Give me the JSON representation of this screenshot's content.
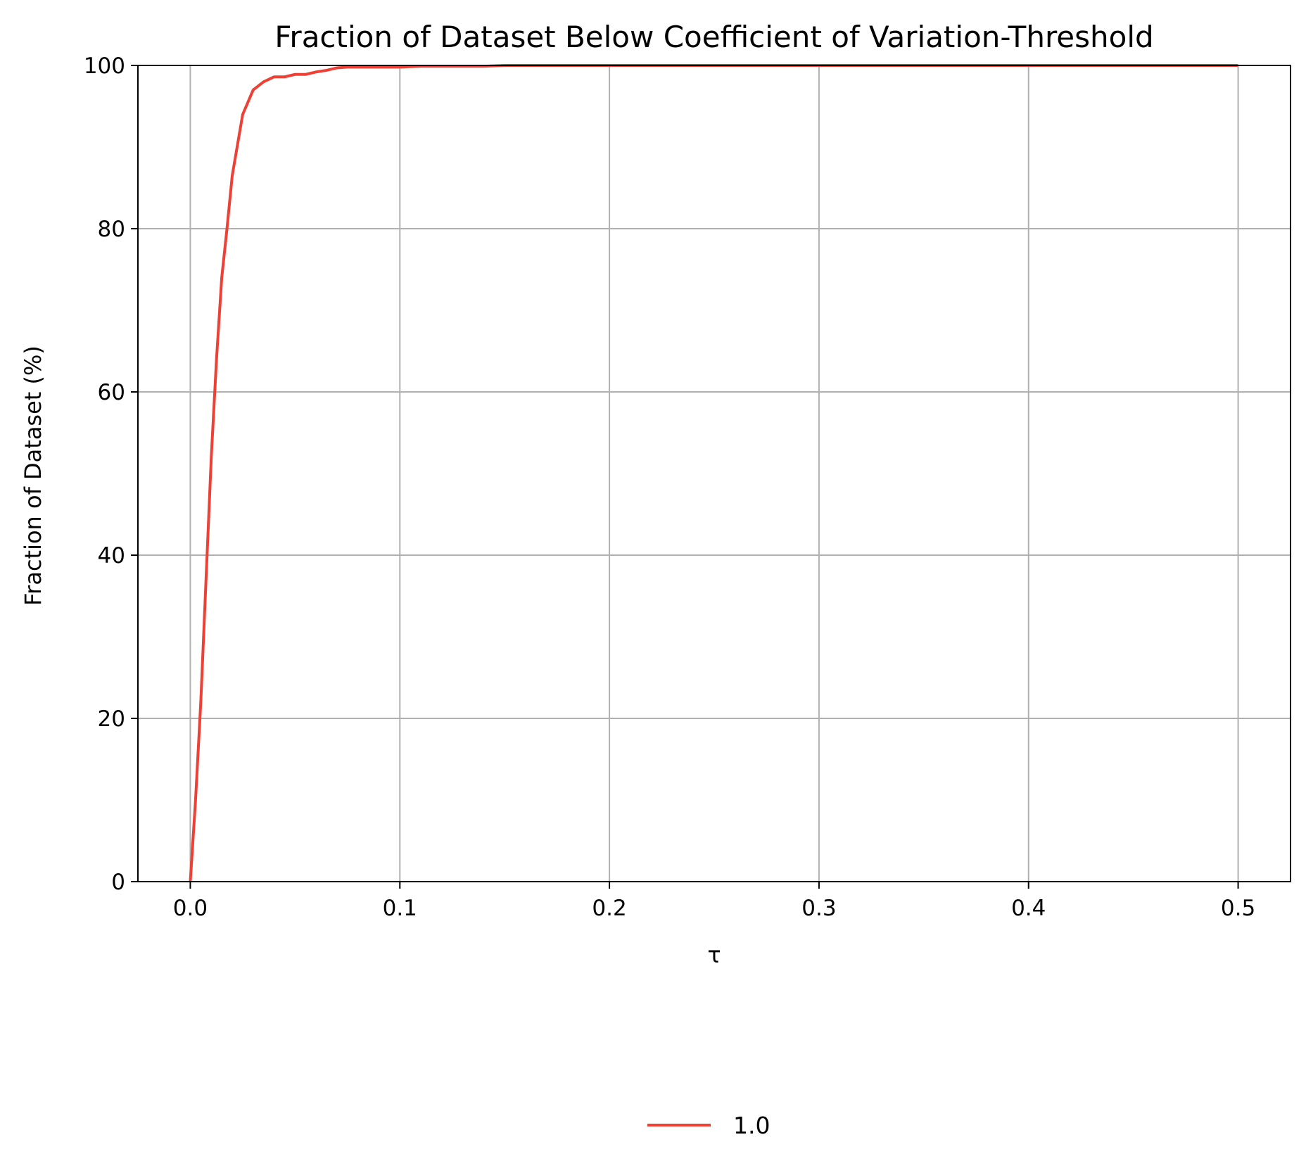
{
  "chart_data": {
    "type": "line",
    "title": "Fraction of Dataset Below Coefficient of Variation-Threshold",
    "xlabel": "τ",
    "ylabel": "Fraction of Dataset (%)",
    "xlim": [
      -0.025,
      0.525
    ],
    "ylim": [
      0,
      100
    ],
    "xticks": [
      0.0,
      0.1,
      0.2,
      0.3,
      0.4,
      0.5
    ],
    "xtick_labels": [
      "0.0",
      "0.1",
      "0.2",
      "0.3",
      "0.4",
      "0.5"
    ],
    "yticks": [
      0,
      20,
      40,
      60,
      80,
      100
    ],
    "ytick_labels": [
      "0",
      "20",
      "40",
      "60",
      "80",
      "100"
    ],
    "grid": true,
    "legend_position": "bottom-center",
    "series": [
      {
        "name": "1.0",
        "color": "#ee4035",
        "x": [
          0.0,
          0.0025,
          0.005,
          0.0075,
          0.01,
          0.0125,
          0.015,
          0.0175,
          0.02,
          0.025,
          0.03,
          0.035,
          0.04,
          0.045,
          0.05,
          0.055,
          0.06,
          0.065,
          0.07,
          0.075,
          0.08,
          0.09,
          0.1,
          0.11,
          0.12,
          0.13,
          0.14,
          0.15,
          0.2,
          0.3,
          0.4,
          0.5
        ],
        "y": [
          0,
          10,
          22,
          37,
          52,
          64,
          74,
          80,
          86.5,
          94,
          97,
          98,
          98.6,
          98.6,
          98.9,
          98.9,
          99.2,
          99.4,
          99.7,
          99.8,
          99.8,
          99.8,
          99.8,
          99.9,
          99.9,
          99.9,
          99.9,
          100,
          100,
          100,
          100,
          100
        ]
      }
    ]
  }
}
